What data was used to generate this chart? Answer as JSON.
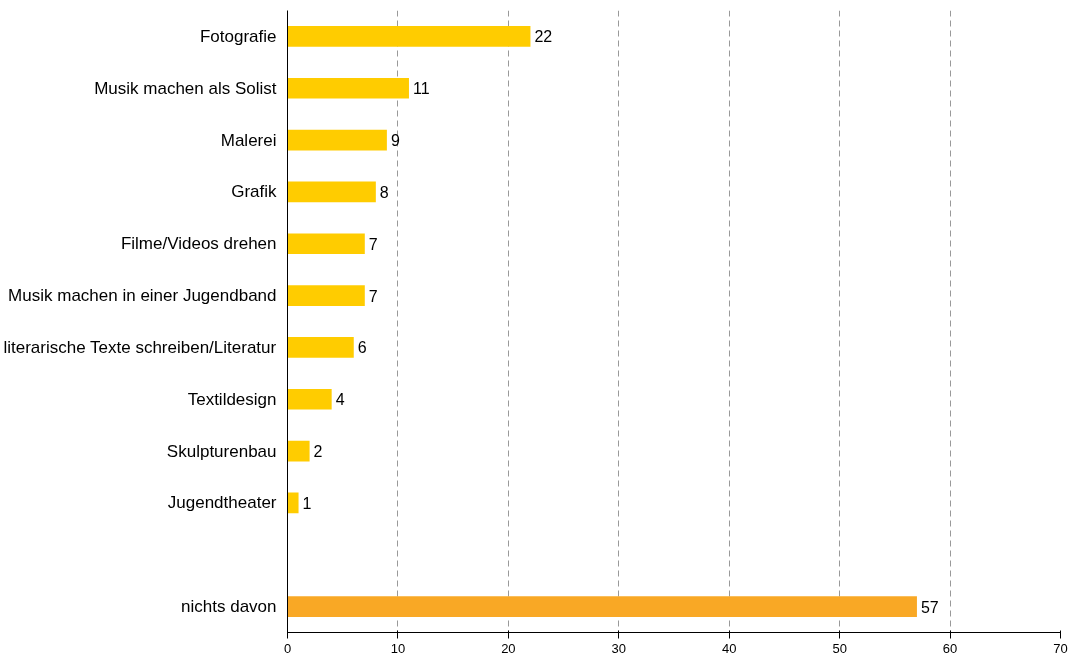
{
  "chart_data": {
    "type": "bar",
    "orientation": "horizontal",
    "categories": [
      "Fotografie",
      "Musik machen als Solist",
      "Malerei",
      "Grafik",
      "Filme/Videos drehen",
      "Musik machen in einer Jugendband",
      "literarische Texte schreiben/Literatur",
      "Textildesign",
      "Skulpturenbau",
      "Jugendtheater",
      null,
      "nichts davon"
    ],
    "values": [
      22,
      11,
      9,
      8,
      7,
      7,
      6,
      4,
      2,
      1,
      null,
      57
    ],
    "colors": [
      "#ffcc00",
      "#ffcc00",
      "#ffcc00",
      "#ffcc00",
      "#ffcc00",
      "#ffcc00",
      "#ffcc00",
      "#ffcc00",
      "#ffcc00",
      "#ffcc00",
      "#ffcc00",
      "#f9a825"
    ],
    "xlim": [
      0,
      70
    ],
    "xticks": [
      0,
      10,
      20,
      30,
      40,
      50,
      60,
      70
    ],
    "grid": "x",
    "data_labels": true
  }
}
